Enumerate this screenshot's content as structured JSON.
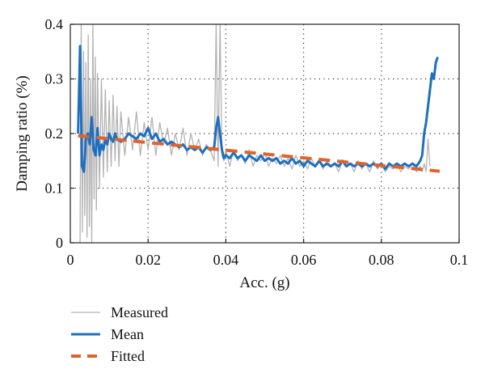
{
  "chart_data": {
    "type": "line",
    "title": "",
    "xlabel": "Acc. (g)",
    "ylabel": "Damping ratio (%)",
    "xlim": [
      0,
      0.1
    ],
    "ylim": [
      0,
      0.4
    ],
    "x_ticks": [
      0,
      0.02,
      0.04,
      0.06,
      0.08,
      0.1
    ],
    "x_tick_labels": [
      "0",
      "0.02",
      "0.04",
      "0.06",
      "0.08",
      "0.1"
    ],
    "y_ticks": [
      0,
      0.1,
      0.2,
      0.3,
      0.4
    ],
    "y_tick_labels": [
      "0",
      "0.1",
      "0.2",
      "0.3",
      "0.4"
    ],
    "grid": "dotted",
    "legend_position": "bottom-left",
    "series": [
      {
        "name": "Measured",
        "color": "#b3b3b3",
        "style": "solid-thin",
        "x": [
          0.0025,
          0.0028,
          0.0031,
          0.0034,
          0.0037,
          0.004,
          0.0043,
          0.0046,
          0.0049,
          0.0052,
          0.0055,
          0.0058,
          0.0061,
          0.0064,
          0.0067,
          0.007,
          0.0075,
          0.008,
          0.0085,
          0.009,
          0.0095,
          0.01,
          0.0105,
          0.011,
          0.0115,
          0.012,
          0.0125,
          0.013,
          0.014,
          0.015,
          0.016,
          0.017,
          0.018,
          0.019,
          0.02,
          0.021,
          0.022,
          0.023,
          0.024,
          0.025,
          0.026,
          0.027,
          0.028,
          0.029,
          0.03,
          0.031,
          0.032,
          0.033,
          0.034,
          0.035,
          0.036,
          0.037,
          0.0375,
          0.038,
          0.0385,
          0.039,
          0.0395,
          0.04,
          0.041,
          0.042,
          0.043,
          0.044,
          0.045,
          0.046,
          0.047,
          0.048,
          0.049,
          0.05,
          0.051,
          0.052,
          0.053,
          0.054,
          0.055,
          0.056,
          0.057,
          0.058,
          0.059,
          0.06,
          0.061,
          0.062,
          0.063,
          0.064,
          0.065,
          0.066,
          0.067,
          0.068,
          0.069,
          0.07,
          0.071,
          0.072,
          0.073,
          0.074,
          0.075,
          0.076,
          0.077,
          0.078,
          0.079,
          0.08,
          0.081,
          0.082,
          0.083,
          0.084,
          0.085,
          0.086,
          0.087,
          0.088,
          0.089,
          0.09,
          0.0905,
          0.091,
          0.0915,
          0.092,
          0.0925
        ],
        "y": [
          0.0,
          0.4,
          0.02,
          0.35,
          0.05,
          0.33,
          0.01,
          0.38,
          0.03,
          0.3,
          0.0,
          0.4,
          0.08,
          0.34,
          0.06,
          0.31,
          0.1,
          0.3,
          0.12,
          0.28,
          0.13,
          0.26,
          0.14,
          0.27,
          0.15,
          0.25,
          0.14,
          0.24,
          0.16,
          0.23,
          0.17,
          0.24,
          0.16,
          0.22,
          0.17,
          0.23,
          0.16,
          0.22,
          0.18,
          0.21,
          0.16,
          0.2,
          0.17,
          0.21,
          0.16,
          0.2,
          0.17,
          0.19,
          0.16,
          0.18,
          0.17,
          0.15,
          0.4,
          0.14,
          0.4,
          0.16,
          0.15,
          0.17,
          0.14,
          0.17,
          0.15,
          0.16,
          0.145,
          0.17,
          0.14,
          0.16,
          0.15,
          0.165,
          0.14,
          0.155,
          0.145,
          0.16,
          0.14,
          0.155,
          0.135,
          0.16,
          0.14,
          0.15,
          0.135,
          0.155,
          0.14,
          0.15,
          0.135,
          0.15,
          0.14,
          0.145,
          0.13,
          0.15,
          0.14,
          0.145,
          0.13,
          0.15,
          0.135,
          0.145,
          0.13,
          0.15,
          0.135,
          0.145,
          0.13,
          0.14,
          0.135,
          0.145,
          0.13,
          0.14,
          0.135,
          0.145,
          0.13,
          0.14,
          0.13,
          0.145,
          0.13,
          0.19,
          0.14
        ]
      },
      {
        "name": "Mean",
        "color": "#1f6fc0",
        "style": "solid-thick",
        "x": [
          0.002,
          0.0025,
          0.003,
          0.0035,
          0.004,
          0.0045,
          0.005,
          0.0055,
          0.006,
          0.0065,
          0.007,
          0.0075,
          0.008,
          0.0085,
          0.009,
          0.0095,
          0.01,
          0.0105,
          0.011,
          0.0115,
          0.012,
          0.013,
          0.014,
          0.015,
          0.016,
          0.017,
          0.018,
          0.019,
          0.02,
          0.021,
          0.022,
          0.023,
          0.024,
          0.025,
          0.026,
          0.027,
          0.028,
          0.029,
          0.03,
          0.031,
          0.032,
          0.033,
          0.034,
          0.035,
          0.036,
          0.037,
          0.0375,
          0.038,
          0.0385,
          0.039,
          0.0395,
          0.04,
          0.041,
          0.042,
          0.043,
          0.044,
          0.045,
          0.046,
          0.047,
          0.048,
          0.049,
          0.05,
          0.051,
          0.052,
          0.053,
          0.054,
          0.055,
          0.056,
          0.057,
          0.058,
          0.059,
          0.06,
          0.061,
          0.062,
          0.063,
          0.064,
          0.065,
          0.066,
          0.067,
          0.068,
          0.069,
          0.07,
          0.071,
          0.072,
          0.073,
          0.074,
          0.075,
          0.076,
          0.077,
          0.078,
          0.079,
          0.08,
          0.081,
          0.082,
          0.083,
          0.084,
          0.085,
          0.086,
          0.087,
          0.088,
          0.089,
          0.09,
          0.0905,
          0.091,
          0.0915,
          0.092,
          0.0925,
          0.093,
          0.0935,
          0.094,
          0.0945
        ],
        "y": [
          0.2,
          0.36,
          0.14,
          0.13,
          0.19,
          0.2,
          0.18,
          0.23,
          0.17,
          0.16,
          0.21,
          0.16,
          0.18,
          0.17,
          0.19,
          0.18,
          0.2,
          0.19,
          0.185,
          0.2,
          0.19,
          0.185,
          0.19,
          0.2,
          0.195,
          0.19,
          0.2,
          0.195,
          0.21,
          0.19,
          0.2,
          0.185,
          0.19,
          0.18,
          0.185,
          0.18,
          0.175,
          0.18,
          0.17,
          0.175,
          0.17,
          0.175,
          0.165,
          0.175,
          0.17,
          0.175,
          0.21,
          0.23,
          0.2,
          0.17,
          0.155,
          0.16,
          0.155,
          0.165,
          0.155,
          0.16,
          0.15,
          0.16,
          0.155,
          0.15,
          0.16,
          0.15,
          0.155,
          0.15,
          0.155,
          0.145,
          0.15,
          0.145,
          0.155,
          0.145,
          0.15,
          0.14,
          0.15,
          0.145,
          0.14,
          0.15,
          0.14,
          0.145,
          0.14,
          0.145,
          0.14,
          0.15,
          0.14,
          0.145,
          0.14,
          0.145,
          0.14,
          0.145,
          0.14,
          0.145,
          0.14,
          0.145,
          0.135,
          0.145,
          0.14,
          0.145,
          0.14,
          0.145,
          0.14,
          0.145,
          0.14,
          0.15,
          0.16,
          0.2,
          0.22,
          0.25,
          0.28,
          0.31,
          0.3,
          0.33,
          0.34
        ]
      },
      {
        "name": "Fitted",
        "color": "#e0632b",
        "style": "dashed-thick",
        "x": [
          0.002,
          0.095
        ],
        "y": [
          0.196,
          0.131
        ]
      }
    ]
  }
}
